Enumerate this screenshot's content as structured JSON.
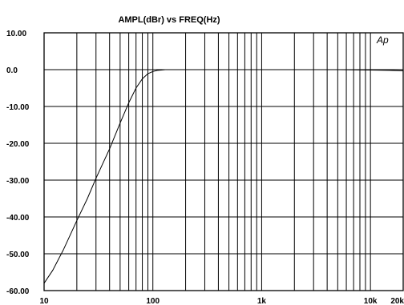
{
  "chart_data": {
    "type": "line",
    "title": "AMPL(dBr) vs FREQ(Hz)",
    "xlabel": "",
    "ylabel": "",
    "x_scale": "log",
    "xlim": [
      10,
      20000
    ],
    "ylim": [
      -60,
      10
    ],
    "grid": true,
    "y_ticks": [
      {
        "value": 10,
        "label": "10.00"
      },
      {
        "value": 0,
        "label": "0.0"
      },
      {
        "value": -10,
        "label": "-10.00"
      },
      {
        "value": -20,
        "label": "-20.00"
      },
      {
        "value": -30,
        "label": "-30.00"
      },
      {
        "value": -40,
        "label": "-40.00"
      },
      {
        "value": -50,
        "label": "-50.00"
      },
      {
        "value": -60,
        "label": "-60.00"
      }
    ],
    "x_ticks": [
      {
        "value": 10,
        "label": "10"
      },
      {
        "value": 100,
        "label": "100"
      },
      {
        "value": 1000,
        "label": "1k"
      },
      {
        "value": 10000,
        "label": "10k"
      },
      {
        "value": 20000,
        "label": "20k"
      }
    ],
    "annotation": "Ap",
    "series": [
      {
        "x": [
          10,
          12,
          15,
          20,
          25,
          30,
          40,
          50,
          60,
          70,
          80,
          90,
          100,
          110,
          120,
          130,
          150,
          200,
          500,
          1000,
          2000,
          5000,
          10000,
          15000,
          20000
        ],
        "y": [
          -58,
          -54.5,
          -49,
          -41,
          -35,
          -29.5,
          -21.5,
          -14.5,
          -9,
          -5,
          -2.5,
          -1.1,
          -0.5,
          -0.2,
          -0.1,
          0,
          0,
          0,
          0,
          0,
          0,
          0,
          -0.1,
          -0.2,
          -0.3
        ]
      }
    ]
  }
}
